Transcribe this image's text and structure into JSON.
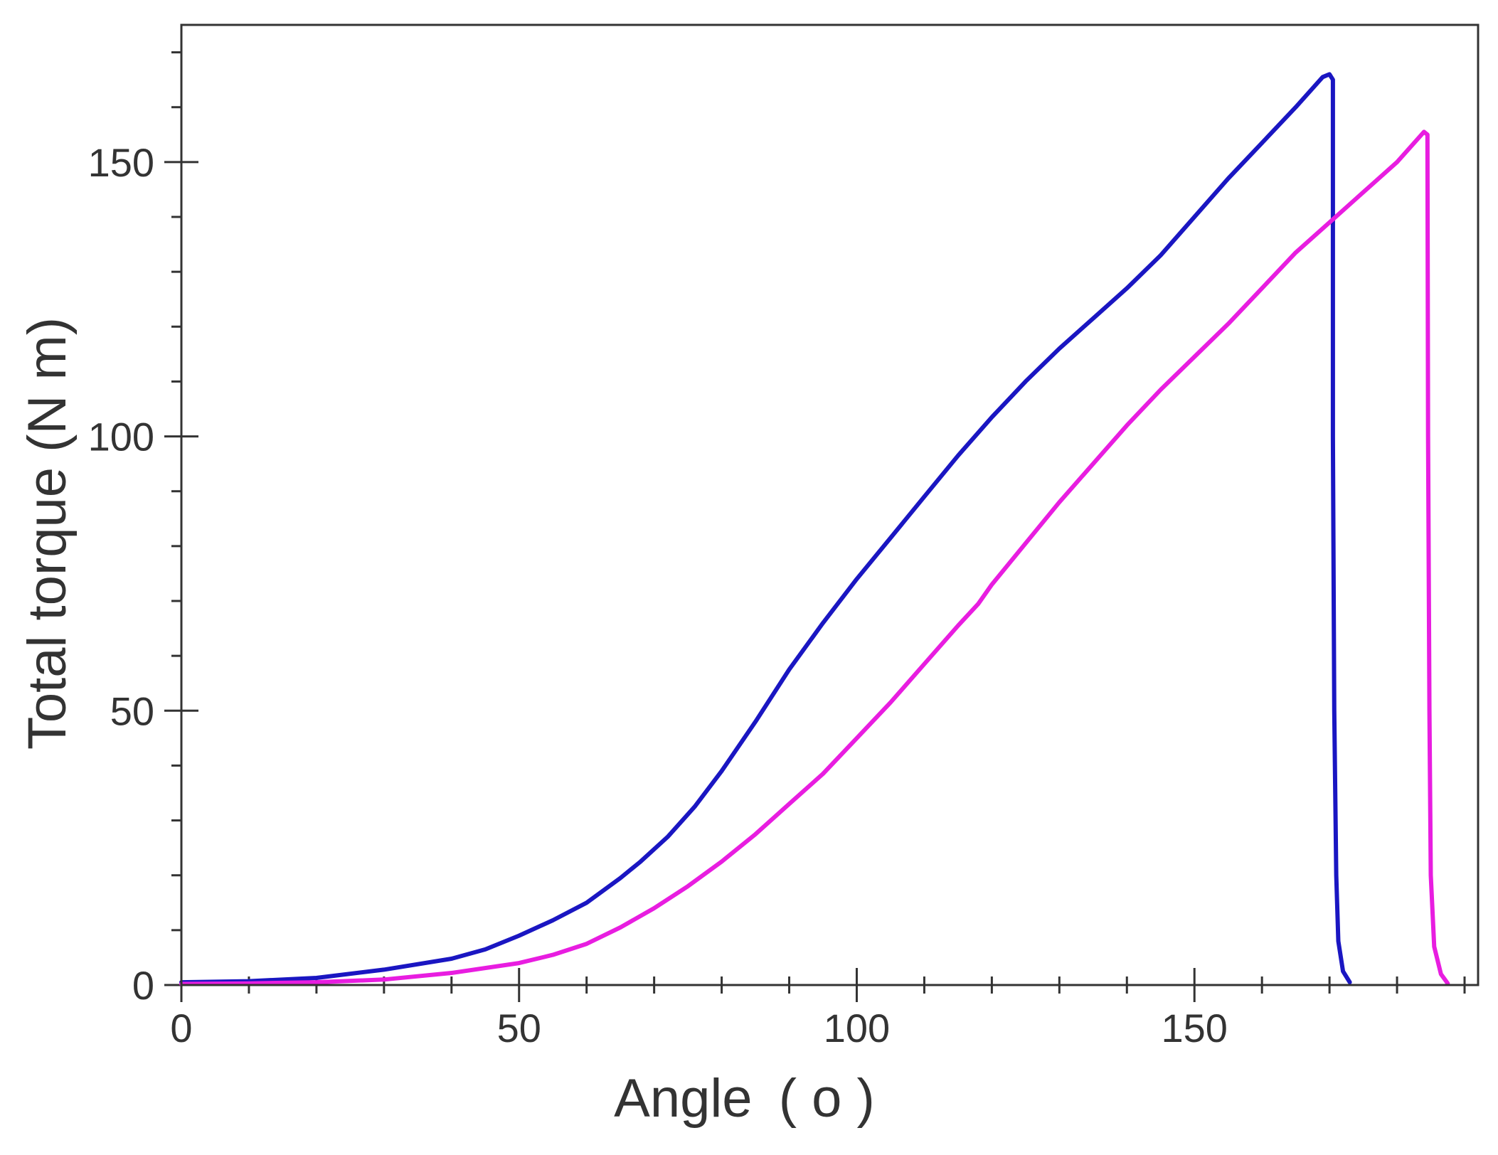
{
  "chart_data": {
    "type": "line",
    "title": "",
    "xlabel": "Angle",
    "xlabel_unit": "( o )",
    "ylabel": "Total torque (N m)",
    "xlim": [
      0,
      192
    ],
    "ylim": [
      0,
      175
    ],
    "x_ticks": [
      0,
      50,
      100,
      150
    ],
    "x_tick_labels": [
      "0",
      "50",
      "100",
      "150"
    ],
    "y_ticks": [
      0,
      50,
      100,
      150
    ],
    "y_tick_labels": [
      "0",
      "50",
      "100",
      "150"
    ],
    "x_minor_step": 10,
    "y_minor_step": 10,
    "grid": false,
    "legend": "none",
    "series": [
      {
        "color": "#1a16c2",
        "points": [
          [
            0,
            0.5
          ],
          [
            10,
            0.7
          ],
          [
            20,
            1.3
          ],
          [
            30,
            2.8
          ],
          [
            40,
            4.8
          ],
          [
            45,
            6.5
          ],
          [
            50,
            9.0
          ],
          [
            55,
            11.8
          ],
          [
            60,
            15.0
          ],
          [
            65,
            19.5
          ],
          [
            68,
            22.5
          ],
          [
            72,
            27.0
          ],
          [
            76,
            32.5
          ],
          [
            80,
            39.0
          ],
          [
            85,
            48.0
          ],
          [
            90,
            57.5
          ],
          [
            95,
            66.0
          ],
          [
            100,
            74.0
          ],
          [
            105,
            81.5
          ],
          [
            110,
            89.0
          ],
          [
            115,
            96.5
          ],
          [
            120,
            103.5
          ],
          [
            125,
            110.0
          ],
          [
            130,
            116.0
          ],
          [
            135,
            121.5
          ],
          [
            140,
            127.0
          ],
          [
            145,
            133.0
          ],
          [
            150,
            140.0
          ],
          [
            155,
            147.0
          ],
          [
            160,
            153.5
          ],
          [
            165,
            160.0
          ],
          [
            169,
            165.5
          ],
          [
            170,
            166.0
          ],
          [
            170.5,
            165.0
          ],
          [
            170.5,
            100.0
          ],
          [
            170.7,
            50.0
          ],
          [
            171.0,
            20.0
          ],
          [
            171.3,
            8.0
          ],
          [
            172.0,
            2.5
          ],
          [
            173.0,
            0.5
          ]
        ]
      },
      {
        "color": "#e81de0",
        "points": [
          [
            0,
            0.2
          ],
          [
            10,
            0.3
          ],
          [
            20,
            0.5
          ],
          [
            30,
            1.0
          ],
          [
            40,
            2.2
          ],
          [
            50,
            4.0
          ],
          [
            55,
            5.5
          ],
          [
            60,
            7.5
          ],
          [
            65,
            10.5
          ],
          [
            70,
            14.0
          ],
          [
            75,
            18.0
          ],
          [
            80,
            22.5
          ],
          [
            85,
            27.5
          ],
          [
            90,
            33.0
          ],
          [
            95,
            38.5
          ],
          [
            100,
            45.0
          ],
          [
            105,
            51.5
          ],
          [
            110,
            58.5
          ],
          [
            115,
            65.5
          ],
          [
            118,
            69.5
          ],
          [
            120,
            73.0
          ],
          [
            125,
            80.5
          ],
          [
            130,
            88.0
          ],
          [
            135,
            95.0
          ],
          [
            140,
            102.0
          ],
          [
            145,
            108.5
          ],
          [
            150,
            114.5
          ],
          [
            155,
            120.5
          ],
          [
            160,
            127.0
          ],
          [
            165,
            133.5
          ],
          [
            170,
            139.0
          ],
          [
            175,
            144.5
          ],
          [
            180,
            150.0
          ],
          [
            184,
            155.5
          ],
          [
            184.5,
            155.0
          ],
          [
            184.6,
            100.0
          ],
          [
            184.8,
            50.0
          ],
          [
            185.0,
            20.0
          ],
          [
            185.5,
            7.0
          ],
          [
            186.5,
            2.0
          ],
          [
            187.5,
            0.3
          ]
        ]
      }
    ]
  }
}
